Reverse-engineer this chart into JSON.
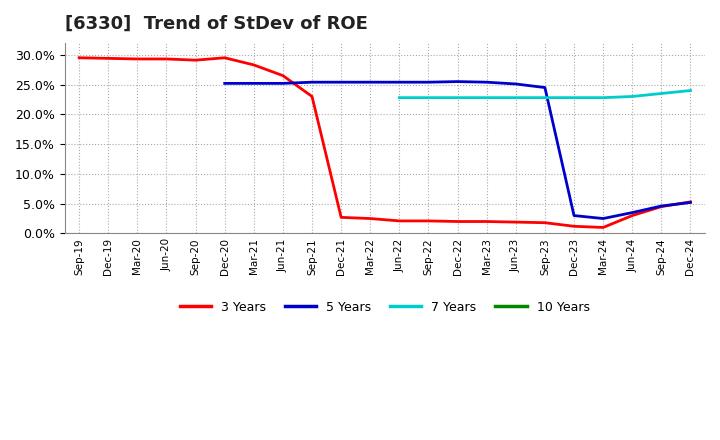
{
  "title": "[6330]  Trend of StDev of ROE",
  "title_fontsize": 13,
  "background_color": "#ffffff",
  "grid_color": "#aaaaaa",
  "ylim": [
    0.0,
    0.32
  ],
  "yticks": [
    0.0,
    0.05,
    0.1,
    0.15,
    0.2,
    0.25,
    0.3
  ],
  "x_labels": [
    "Sep-19",
    "Dec-19",
    "Mar-20",
    "Jun-20",
    "Sep-20",
    "Dec-20",
    "Mar-21",
    "Jun-21",
    "Sep-21",
    "Dec-21",
    "Mar-22",
    "Jun-22",
    "Sep-22",
    "Dec-22",
    "Mar-23",
    "Jun-23",
    "Sep-23",
    "Dec-23",
    "Mar-24",
    "Jun-24",
    "Sep-24",
    "Dec-24"
  ],
  "series": {
    "3 Years": {
      "color": "#ff0000",
      "data": [
        0.295,
        0.294,
        0.293,
        0.293,
        0.291,
        0.295,
        0.283,
        0.265,
        0.23,
        0.027,
        0.025,
        0.021,
        0.021,
        0.02,
        0.02,
        0.019,
        0.018,
        0.012,
        0.01,
        0.03,
        0.045,
        0.053
      ]
    },
    "5 Years": {
      "color": "#0000cc",
      "data": [
        null,
        null,
        null,
        null,
        null,
        0.252,
        0.252,
        0.252,
        0.254,
        0.254,
        0.254,
        0.254,
        0.254,
        0.255,
        0.254,
        0.251,
        0.245,
        0.03,
        0.025,
        0.035,
        0.046,
        0.052
      ]
    },
    "7 Years": {
      "color": "#00cccc",
      "data": [
        null,
        null,
        null,
        null,
        null,
        null,
        null,
        null,
        null,
        null,
        null,
        0.228,
        0.228,
        0.228,
        0.228,
        0.228,
        0.228,
        0.228,
        0.228,
        0.23,
        0.235,
        0.24
      ]
    },
    "10 Years": {
      "color": "#008800",
      "data": [
        null,
        null,
        null,
        null,
        null,
        null,
        null,
        null,
        null,
        null,
        null,
        null,
        null,
        null,
        null,
        null,
        null,
        null,
        null,
        null,
        null,
        null
      ]
    }
  },
  "legend_labels": [
    "3 Years",
    "5 Years",
    "7 Years",
    "10 Years"
  ],
  "legend_colors": [
    "#ff0000",
    "#0000cc",
    "#00cccc",
    "#008800"
  ]
}
